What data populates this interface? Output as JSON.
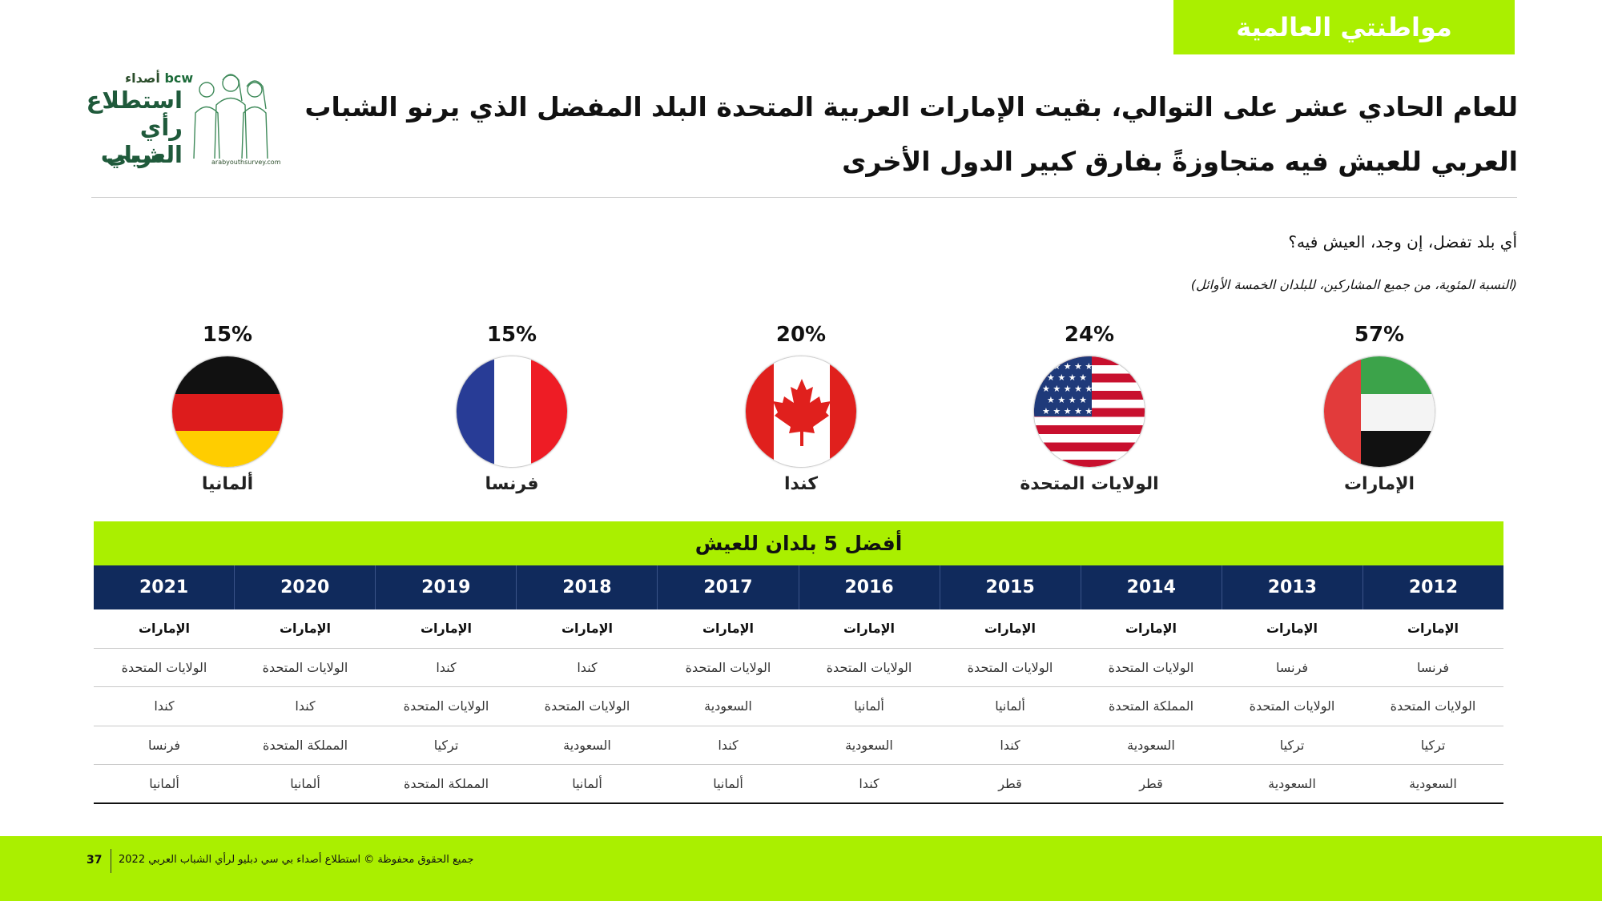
{
  "section_tag": "مواطنتي العالمية",
  "logo": {
    "brand_latin": "bcw",
    "brand_arabic": "أصداء",
    "line1": "استطلاع",
    "line2": "رأي الشباب",
    "line3": "العربي",
    "url": "arabyouthsurvey.com"
  },
  "headline": "للعام الحادي عشر على التوالي، بقيت الإمارات العربية المتحدة البلد المفضل الذي يرنو الشباب العربي للعيش فيه متجاوزةً بفارق كبير الدول الأخرى",
  "question": "أي بلد تفضل، إن وجد، العيش فيه؟",
  "note": "(النسبة المئوية، من جميع المشاركين، للبلدان الخمسة الأوائل)",
  "countries": [
    {
      "name": "الإمارات",
      "pct": "57%",
      "flag": "uae-flag-icon"
    },
    {
      "name": "الولايات المتحدة",
      "pct": "24%",
      "flag": "usa-flag-icon"
    },
    {
      "name": "كندا",
      "pct": "20%",
      "flag": "canada-flag-icon"
    },
    {
      "name": "فرنسا",
      "pct": "15%",
      "flag": "france-flag-icon"
    },
    {
      "name": "ألمانيا",
      "pct": "15%",
      "flag": "germany-flag-icon"
    }
  ],
  "table": {
    "title": "أفضل 5 بلدان للعيش",
    "years": [
      "2012",
      "2013",
      "2014",
      "2015",
      "2016",
      "2017",
      "2018",
      "2019",
      "2020",
      "2021"
    ],
    "rows": [
      [
        "الإمارات",
        "الإمارات",
        "الإمارات",
        "الإمارات",
        "الإمارات",
        "الإمارات",
        "الإمارات",
        "الإمارات",
        "الإمارات",
        "الإمارات"
      ],
      [
        "فرنسا",
        "فرنسا",
        "الولايات المتحدة",
        "الولايات المتحدة",
        "الولايات المتحدة",
        "الولايات المتحدة",
        "كندا",
        "كندا",
        "الولايات المتحدة",
        "الولايات المتحدة"
      ],
      [
        "الولايات المتحدة",
        "الولايات المتحدة",
        "المملكة المتحدة",
        "ألمانيا",
        "ألمانيا",
        "السعودية",
        "الولايات المتحدة",
        "الولايات المتحدة",
        "كندا",
        "كندا"
      ],
      [
        "تركيا",
        "تركيا",
        "السعودية",
        "كندا",
        "السعودية",
        "كندا",
        "السعودية",
        "تركيا",
        "المملكة المتحدة",
        "فرنسا"
      ],
      [
        "السعودية",
        "السعودية",
        "قطر",
        "قطر",
        "كندا",
        "ألمانيا",
        "ألمانيا",
        "المملكة المتحدة",
        "ألمانيا",
        "ألمانيا"
      ]
    ]
  },
  "footer": {
    "page_number": "37",
    "copyright": "جميع الحقوق محفوظة © استطلاع أصداء بي سي دبليو لرأي الشباب العربي 2022"
  },
  "colors": {
    "accent_green": "#aaef00",
    "navy": "#102a5c"
  }
}
